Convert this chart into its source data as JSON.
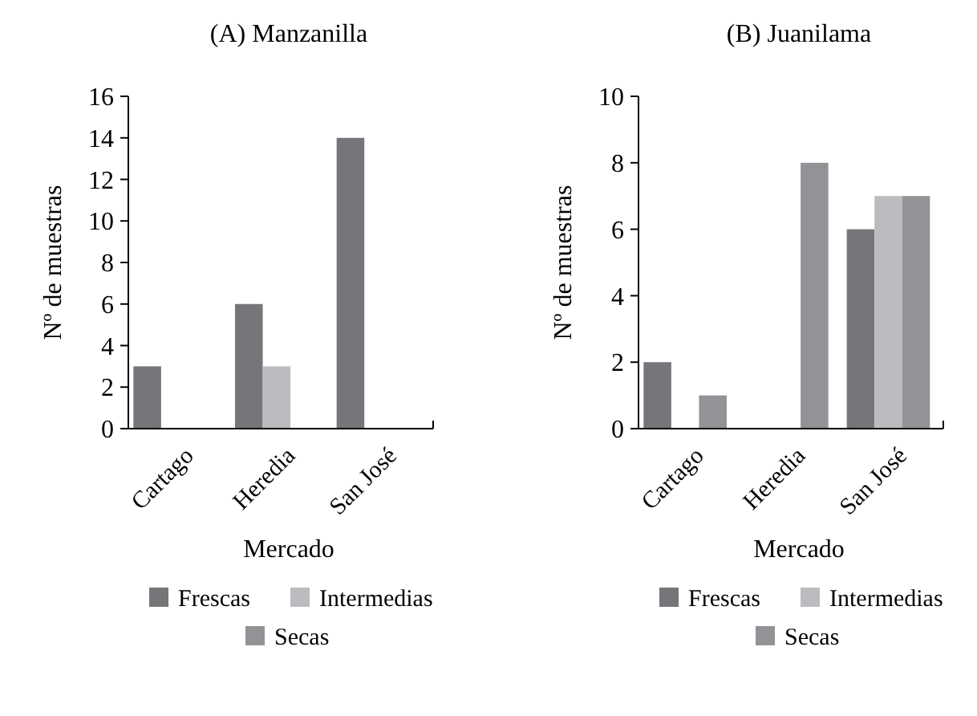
{
  "chart_data": [
    {
      "type": "bar",
      "title": "(A) Manzanilla",
      "xlabel": "Mercado",
      "ylabel": "Nº de muestras",
      "categories": [
        "Cartago",
        "Heredia",
        "San José"
      ],
      "series": [
        {
          "name": "Frescas",
          "color": "#76767a",
          "values": [
            3,
            6,
            14
          ]
        },
        {
          "name": "Intermedias",
          "color": "#bcbcc0",
          "values": [
            0,
            3,
            0
          ]
        },
        {
          "name": "Secas",
          "color": "#939397",
          "values": [
            0,
            0,
            0
          ]
        }
      ],
      "ylim": [
        0,
        16
      ],
      "yticks": [
        0,
        2,
        4,
        6,
        8,
        10,
        12,
        14,
        16
      ],
      "legend": "bottom",
      "grid": false
    },
    {
      "type": "bar",
      "title": "(B) Juanilama",
      "xlabel": "Mercado",
      "ylabel": "Nº de muestras",
      "categories": [
        "Cartago",
        "Heredia",
        "San José"
      ],
      "series": [
        {
          "name": "Frescas",
          "color": "#76767a",
          "values": [
            2,
            0,
            6
          ]
        },
        {
          "name": "Intermedias",
          "color": "#bcbcc0",
          "values": [
            0,
            0,
            7
          ]
        },
        {
          "name": "Secas",
          "color": "#939397",
          "values": [
            1,
            8,
            7
          ]
        }
      ],
      "ylim": [
        0,
        10
      ],
      "yticks": [
        0,
        2,
        4,
        6,
        8,
        10
      ],
      "legend": "bottom",
      "grid": false
    }
  ]
}
